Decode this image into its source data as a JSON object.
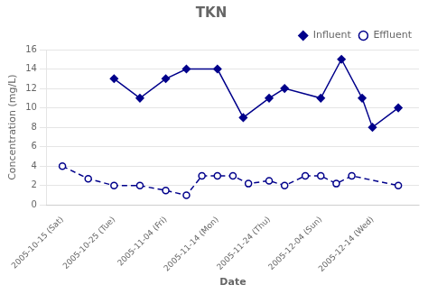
{
  "chart_data": {
    "type": "line",
    "title": "TKN",
    "xlabel": "Date",
    "ylabel": "Concentration (mg/L)",
    "series": [
      {
        "name": "Influent",
        "color": "#00008B",
        "marker": "diamond",
        "line_style": "solid",
        "x": [
          1,
          1.5,
          2,
          2.4,
          3,
          3.5,
          4,
          4.3,
          5,
          5.4,
          5.8,
          6.0,
          6.5
        ],
        "values": [
          13.0,
          11.0,
          13.0,
          14.0,
          14.0,
          9.0,
          11.0,
          12.0,
          11.0,
          15.0,
          11.0,
          8.0,
          10.0
        ]
      },
      {
        "name": "Effluent",
        "color": "#00008B",
        "marker": "open circle",
        "line_style": "dashed",
        "x": [
          0,
          0.5,
          1.0,
          1.5,
          2.0,
          2.4,
          2.7,
          3.0,
          3.3,
          3.6,
          4.0,
          4.3,
          4.7,
          5.0,
          5.3,
          5.6,
          6.5
        ],
        "values": [
          4.0,
          2.7,
          2.0,
          2.0,
          1.5,
          1.0,
          3.0,
          3.0,
          3.0,
          2.2,
          2.5,
          2.0,
          3.0,
          3.0,
          2.2,
          3.0,
          2.0
        ]
      }
    ],
    "xlim": [
      -0.3,
      6.9
    ],
    "xticks": [
      {
        "value": 0,
        "label": "2005-10-15 (Sat)"
      },
      {
        "value": 1,
        "label": "2005-10-25 (Tue)"
      },
      {
        "value": 2,
        "label": "2005-11-04 (Fri)"
      },
      {
        "value": 3,
        "label": "2005-11-14 (Mon)"
      },
      {
        "value": 4,
        "label": "2005-11-24 (Thu)"
      },
      {
        "value": 5,
        "label": "2005-12-04 (Sun)"
      },
      {
        "value": 6,
        "label": "2005-12-14 (Wed)"
      }
    ],
    "ylim": [
      0,
      16
    ],
    "yticks": [
      0,
      2,
      4,
      6,
      8,
      10,
      12,
      14,
      16
    ],
    "grid": "y",
    "legend": "upper right"
  }
}
